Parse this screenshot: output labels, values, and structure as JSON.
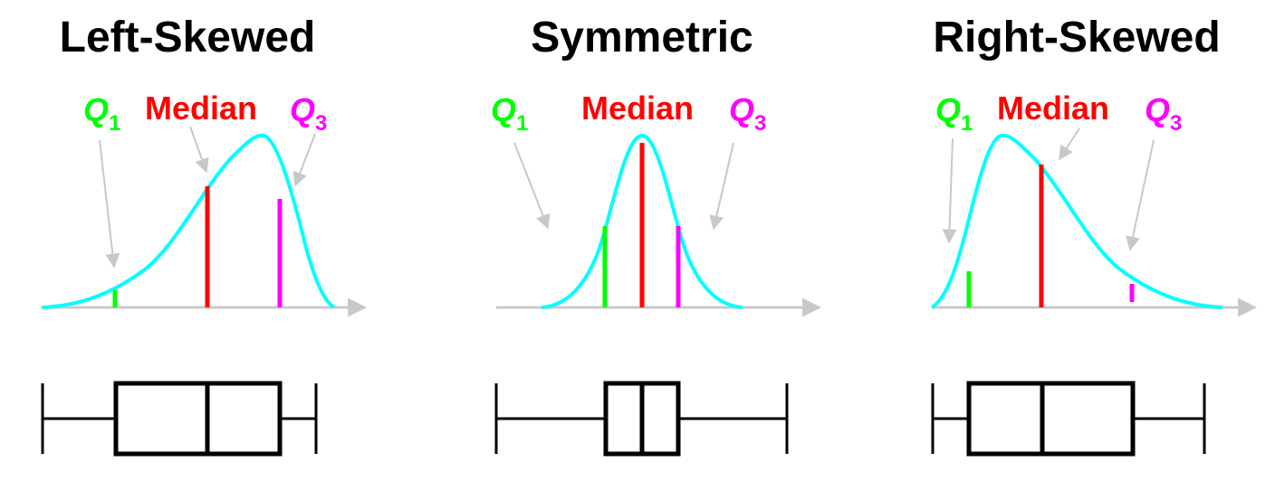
{
  "colors": {
    "curve": "#00ffff",
    "q1": "#00ff00",
    "median": "#ff0000",
    "q3": "#ff00ff",
    "axis": "#c8c8c8",
    "pointer": "#c8c8c8",
    "box": "#000000"
  },
  "labels": {
    "q_letter": "Q",
    "q1_sub": "1",
    "q3_sub": "3",
    "median": "Median"
  },
  "panels": [
    {
      "title": "Left-Skewed",
      "shape": "left-skewed",
      "quartiles": {
        "min": 0.0,
        "q1": 0.27,
        "median": 0.6,
        "q3": 0.87,
        "max": 1.0
      }
    },
    {
      "title": "Symmetric",
      "shape": "symmetric",
      "quartiles": {
        "min": 0.0,
        "q1": 0.375,
        "median": 0.5,
        "q3": 0.625,
        "max": 1.0
      }
    },
    {
      "title": "Right-Skewed",
      "shape": "right-skewed",
      "quartiles": {
        "min": 0.0,
        "q1": 0.13,
        "median": 0.4,
        "q3": 0.73,
        "max": 1.0
      }
    }
  ]
}
